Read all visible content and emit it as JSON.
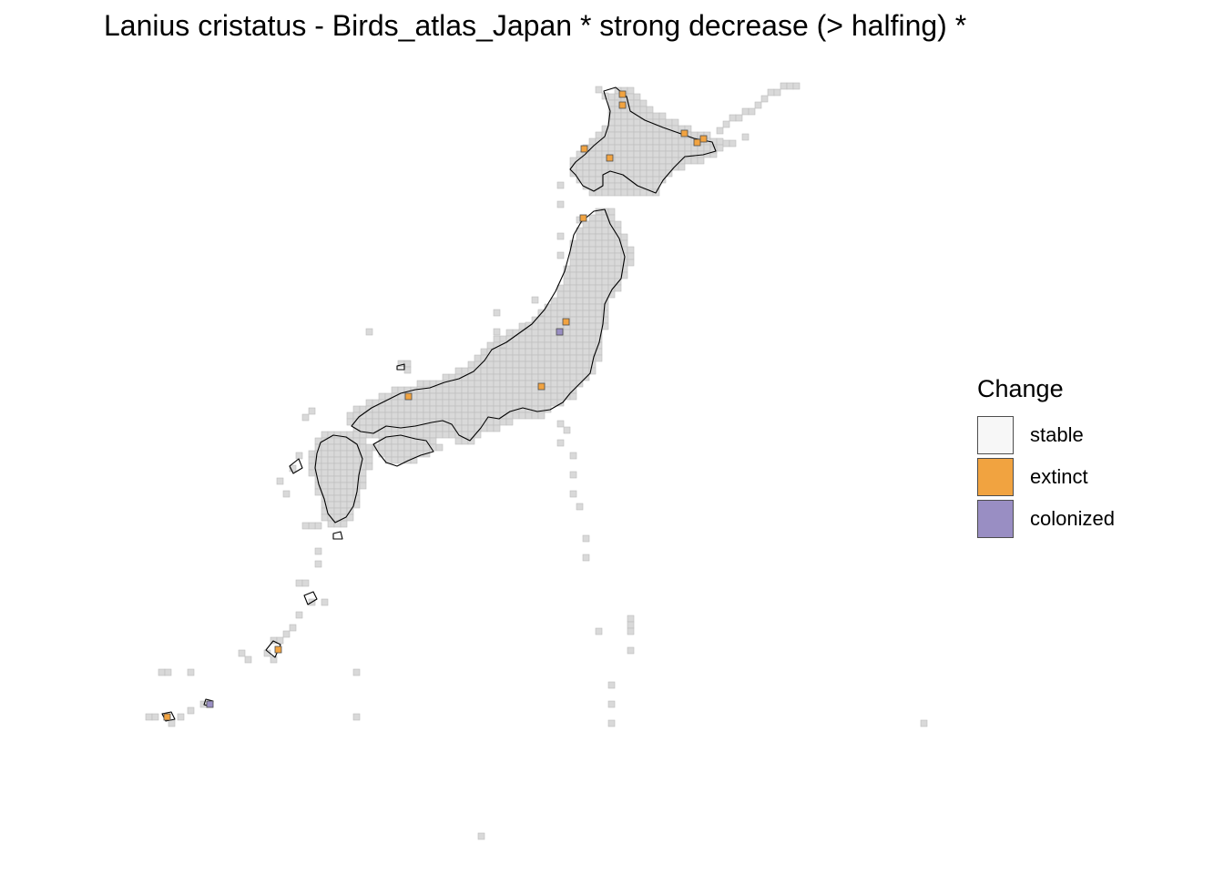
{
  "title": "Lanius cristatus - Birds_atlas_Japan * strong decrease (> halfing) *",
  "legend": {
    "title": "Change",
    "items": [
      {
        "label": "stable",
        "color": "#f7f7f7"
      },
      {
        "label": "extinct",
        "color": "#f1a340"
      },
      {
        "label": "colonized",
        "color": "#998ec3"
      }
    ]
  },
  "map": {
    "region": "Japan",
    "cell_color": "#d9d9d9",
    "coastline_color": "#000000",
    "extinct_cell_count": 13,
    "colonized_cell_count": 2
  }
}
